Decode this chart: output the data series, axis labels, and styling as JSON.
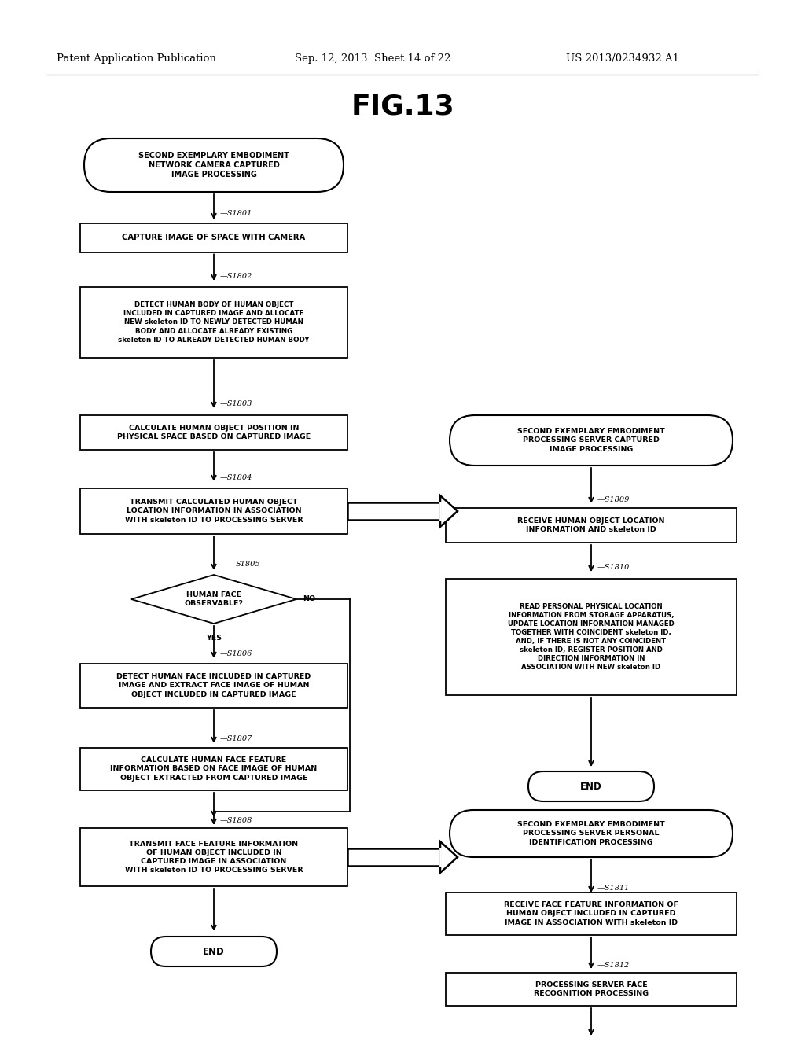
{
  "title": "FIG.13",
  "header_left": "Patent Application Publication",
  "header_center": "Sep. 12, 2013  Sheet 14 of 22",
  "header_right": "US 2013/0234932 A1",
  "bg_color": "#ffffff",
  "fig_width": 10.24,
  "fig_height": 13.2,
  "dpi": 100
}
